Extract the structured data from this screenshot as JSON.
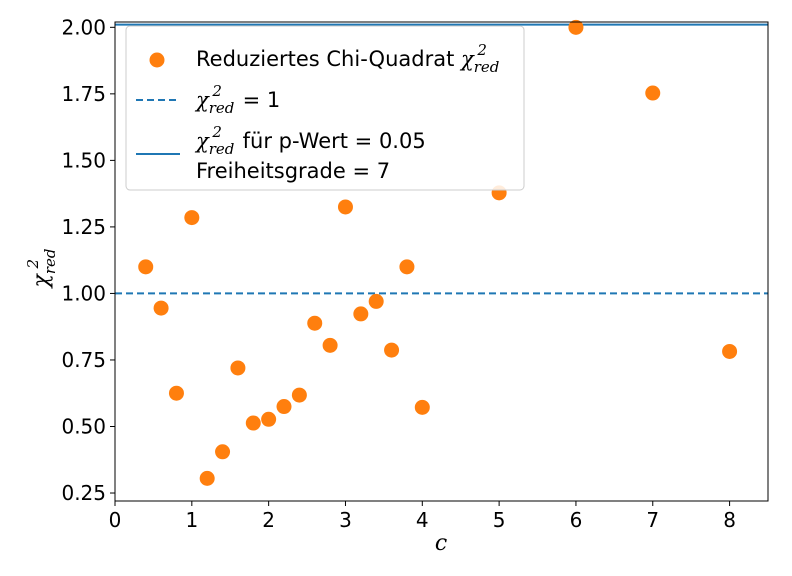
{
  "chart_data": {
    "type": "scatter",
    "xlabel": "c",
    "ylabel_base": "χ",
    "ylabel_sup": "2",
    "ylabel_sub": "red",
    "xlim": [
      0,
      8.5
    ],
    "ylim": [
      0.22,
      2.02
    ],
    "xticks": [
      0,
      1,
      2,
      3,
      4,
      5,
      6,
      7,
      8
    ],
    "xtick_labels": [
      "0",
      "1",
      "2",
      "3",
      "4",
      "5",
      "6",
      "7",
      "8"
    ],
    "yticks": [
      0.25,
      0.5,
      0.75,
      1.0,
      1.25,
      1.5,
      1.75,
      2.0
    ],
    "ytick_labels": [
      "0.25",
      "0.50",
      "0.75",
      "1.00",
      "1.25",
      "1.50",
      "1.75",
      "2.00"
    ],
    "grid": false,
    "legend_position": "top-left",
    "series": [
      {
        "name": "Reduziertes Chi-Quadrat χ²red",
        "kind": "scatter",
        "color": "#ff7f0e",
        "x": [
          0.4,
          0.6,
          0.8,
          1.0,
          1.2,
          1.4,
          1.6,
          1.8,
          2.0,
          2.2,
          2.4,
          2.6,
          2.8,
          3.0,
          3.2,
          3.4,
          3.6,
          3.8,
          4.0,
          5.0,
          6.0,
          7.0,
          8.0
        ],
        "y": [
          1.1,
          0.945,
          0.625,
          1.285,
          0.305,
          0.405,
          0.72,
          0.513,
          0.527,
          0.575,
          0.618,
          0.888,
          0.805,
          1.325,
          0.923,
          0.97,
          0.787,
          1.1,
          0.572,
          1.378,
          2.0,
          1.753,
          0.782
        ]
      },
      {
        "name": "χ²red = 1",
        "kind": "hline-dashed",
        "color": "#1f77b4",
        "y": 1.0
      },
      {
        "name": "χ²red für p-Wert = 0.05 Freiheitsgrade = 7",
        "kind": "hline-solid",
        "color": "#1f77b4",
        "y": 2.01
      }
    ],
    "legend": {
      "scatter_base": "Reduziertes Chi-Quadrat ",
      "math_base": "χ",
      "math_sup": "2",
      "math_sub": "red",
      "dashed_suffix": " = 1",
      "solid_line1_suffix": " für p-Wert = 0.05",
      "solid_line2": "Freiheitsgrade = 7"
    }
  }
}
